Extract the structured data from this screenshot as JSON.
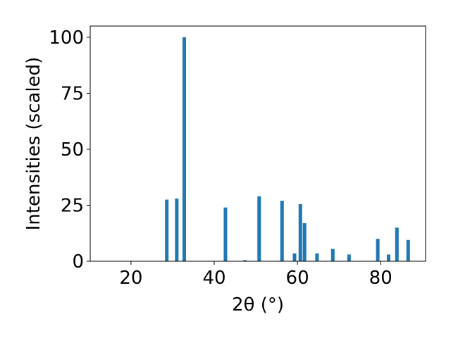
{
  "chart_data": {
    "type": "bar",
    "xlabel": "2θ (°)",
    "ylabel": "Intensities (scaled)",
    "x": [
      28.6,
      31.0,
      32.8,
      42.7,
      47.4,
      50.8,
      56.3,
      59.3,
      60.7,
      61.7,
      64.7,
      68.5,
      72.4,
      79.3,
      81.9,
      83.9,
      86.6
    ],
    "values": [
      27.5,
      28,
      100,
      24,
      0.5,
      29,
      27,
      3.5,
      25.5,
      17,
      3.5,
      5.5,
      3,
      10,
      3,
      15,
      9.5
    ],
    "color": "#1f77b4",
    "xlim": [
      10.2,
      90.8
    ],
    "xticks": [
      20,
      40,
      60,
      80
    ],
    "ylim": [
      0,
      105
    ],
    "yticks": [
      0,
      25,
      50,
      75,
      100
    ]
  }
}
